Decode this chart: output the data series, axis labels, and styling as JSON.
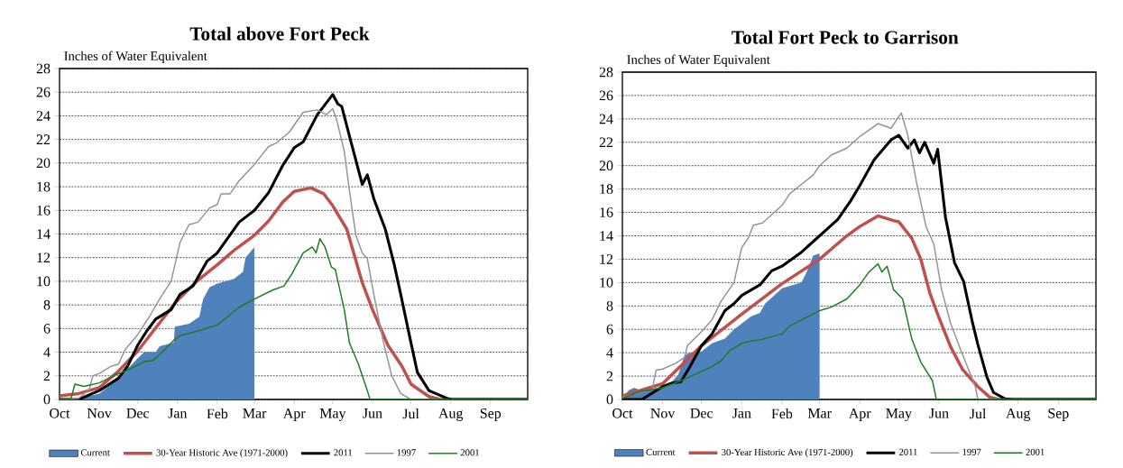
{
  "chart_data": [
    {
      "type": "line",
      "title": "Total above Fort Peck",
      "ylabel": "Inches of Water Equivalent",
      "xlim": [
        "2011-10-01",
        "2012-09-30"
      ],
      "ylim": [
        0,
        28
      ],
      "xticks": [
        {
          "value": "2011-10-01",
          "label": "Oct"
        },
        {
          "value": "2011-11-01",
          "label": "Nov"
        },
        {
          "value": "2011-12-01",
          "label": "Dec"
        },
        {
          "value": "2012-01-01",
          "label": "Jan"
        },
        {
          "value": "2012-02-01",
          "label": "Feb"
        },
        {
          "value": "2012-03-01",
          "label": "Mar"
        },
        {
          "value": "2012-04-01",
          "label": "Apr"
        },
        {
          "value": "2012-05-01",
          "label": "May"
        },
        {
          "value": "2012-06-01",
          "label": "Jun"
        },
        {
          "value": "2012-07-01",
          "label": "Jul"
        },
        {
          "value": "2012-08-01",
          "label": "Aug"
        },
        {
          "value": "2012-09-01",
          "label": "Sep"
        }
      ],
      "yticks": [
        0,
        2,
        4,
        6,
        8,
        10,
        12,
        14,
        16,
        18,
        20,
        22,
        24,
        26,
        28
      ],
      "grid": "y",
      "legend": "bottom",
      "series": [
        {
          "name": "Current",
          "type": "area",
          "color": "#4f81bd",
          "x": [
            "2011-10-01",
            "2011-10-11",
            "2011-10-21",
            "2011-11-01",
            "2011-11-16",
            "2011-12-01",
            "2011-12-06",
            "2011-12-15",
            "2011-12-18",
            "2011-12-29",
            "2011-12-30",
            "2012-01-01",
            "2012-01-10",
            "2012-01-18",
            "2012-01-21",
            "2012-01-26",
            "2012-02-01",
            "2012-02-14",
            "2012-02-21",
            "2012-02-23",
            "2012-03-01"
          ],
          "values": [
            0,
            0,
            0.2,
            0.5,
            1.8,
            3.5,
            4.0,
            4.0,
            4.5,
            4.8,
            6.2,
            6.2,
            6.4,
            7.0,
            8.5,
            9.5,
            9.8,
            10.2,
            10.8,
            12.0,
            12.9
          ]
        },
        {
          "name": "30-Year Historic Ave (1971-2000)",
          "color": "#c0504d",
          "x": [
            "2011-10-01",
            "2011-10-16",
            "2011-11-01",
            "2011-11-16",
            "2011-12-01",
            "2011-12-16",
            "2012-01-01",
            "2012-01-16",
            "2012-02-01",
            "2012-02-15",
            "2012-03-01",
            "2012-03-12",
            "2012-03-23",
            "2012-04-01",
            "2012-04-14",
            "2012-04-24",
            "2012-05-01",
            "2012-05-12",
            "2012-05-24",
            "2012-06-01",
            "2012-06-13",
            "2012-06-24",
            "2012-07-01",
            "2012-07-15",
            "2012-07-24",
            "2012-09-30"
          ],
          "values": [
            0.3,
            0.5,
            1.0,
            2.4,
            4.1,
            6.2,
            8.4,
            10.0,
            11.4,
            12.7,
            13.9,
            15.1,
            16.7,
            17.6,
            17.9,
            17.4,
            16.4,
            14.4,
            9.9,
            7.6,
            4.6,
            2.8,
            1.3,
            0.25,
            0,
            0
          ]
        },
        {
          "name": "2011",
          "color": "#000000",
          "x": [
            "2011-10-01",
            "2011-10-16",
            "2011-11-01",
            "2011-11-16",
            "2011-11-23",
            "2011-12-01",
            "2011-12-08",
            "2011-12-15",
            "2011-12-27",
            "2012-01-03",
            "2012-01-13",
            "2012-01-24",
            "2012-02-01",
            "2012-02-18",
            "2012-03-01",
            "2012-03-12",
            "2012-03-23",
            "2012-04-01",
            "2012-04-08",
            "2012-04-19",
            "2012-05-01",
            "2012-05-05",
            "2012-05-08",
            "2012-05-14",
            "2012-05-24",
            "2012-05-28",
            "2012-06-02",
            "2012-06-11",
            "2012-06-18",
            "2012-06-23",
            "2012-07-01",
            "2012-07-06",
            "2012-07-15",
            "2012-07-29",
            "2012-08-02",
            "2012-09-30"
          ],
          "values": [
            0,
            0,
            0.75,
            1.8,
            2.8,
            4.6,
            5.8,
            6.8,
            7.6,
            8.9,
            9.6,
            11.7,
            12.4,
            15.0,
            16.0,
            17.5,
            19.8,
            21.3,
            21.8,
            24.1,
            25.8,
            25.0,
            24.8,
            22.3,
            18.2,
            19.0,
            17.0,
            14.4,
            11.4,
            8.9,
            4.8,
            2.3,
            0.75,
            0.1,
            0,
            0
          ]
        },
        {
          "name": "1997",
          "color": "#939393",
          "x": [
            "2011-10-01",
            "2011-10-16",
            "2011-10-24",
            "2011-10-27",
            "2011-11-01",
            "2011-11-10",
            "2011-11-16",
            "2011-11-21",
            "2011-12-01",
            "2011-12-10",
            "2011-12-18",
            "2011-12-27",
            "2012-01-03",
            "2012-01-10",
            "2012-01-17",
            "2012-01-26",
            "2012-02-01",
            "2012-02-04",
            "2012-02-11",
            "2012-02-18",
            "2012-03-01",
            "2012-03-12",
            "2012-03-18",
            "2012-03-28",
            "2012-04-08",
            "2012-04-19",
            "2012-04-26",
            "2012-05-01",
            "2012-05-04",
            "2012-05-10",
            "2012-05-14",
            "2012-05-19",
            "2012-05-24",
            "2012-05-28",
            "2012-06-02",
            "2012-06-09",
            "2012-06-16",
            "2012-06-23",
            "2012-07-01",
            "2012-09-30"
          ],
          "values": [
            0,
            0.1,
            0.8,
            2.0,
            2.2,
            2.8,
            3.0,
            4.2,
            5.5,
            7.0,
            8.5,
            10.0,
            13.3,
            14.8,
            15.0,
            16.2,
            16.5,
            17.4,
            17.4,
            18.5,
            19.9,
            21.4,
            21.7,
            22.6,
            24.3,
            24.5,
            24.1,
            24.6,
            23.7,
            21.0,
            17.7,
            13.9,
            12.4,
            11.9,
            8.9,
            5.1,
            2.0,
            0.5,
            0,
            0
          ]
        },
        {
          "name": "2001",
          "color": "#1e7b1e",
          "x": [
            "2011-10-01",
            "2011-10-10",
            "2011-10-13",
            "2011-10-20",
            "2011-10-24",
            "2011-11-01",
            "2011-11-12",
            "2011-11-21",
            "2011-12-01",
            "2011-12-06",
            "2011-12-13",
            "2011-12-20",
            "2011-12-29",
            "2012-01-03",
            "2012-01-17",
            "2012-02-01",
            "2012-02-09",
            "2012-02-18",
            "2012-03-01",
            "2012-03-15",
            "2012-03-24",
            "2012-03-30",
            "2012-04-08",
            "2012-04-15",
            "2012-04-18",
            "2012-04-21",
            "2012-04-25",
            "2012-04-30",
            "2012-05-03",
            "2012-05-10",
            "2012-05-14",
            "2012-05-21",
            "2012-05-28",
            "2012-05-30",
            "2012-09-30"
          ],
          "values": [
            0.1,
            0.1,
            1.3,
            1.1,
            1.2,
            1.4,
            2.0,
            2.4,
            2.9,
            3.2,
            3.3,
            4.0,
            5.0,
            5.4,
            5.8,
            6.3,
            7.0,
            7.8,
            8.5,
            9.25,
            9.6,
            10.6,
            12.4,
            12.9,
            12.4,
            13.6,
            12.9,
            11.2,
            11.0,
            7.6,
            4.8,
            3.0,
            0.75,
            0,
            0
          ]
        }
      ]
    },
    {
      "type": "line",
      "title": "Total Fort Peck to Garrison",
      "ylabel": "Inches of Water Equivalent",
      "xlim": [
        "2011-10-01",
        "2012-09-30"
      ],
      "ylim": [
        0,
        28
      ],
      "xticks": [
        {
          "value": "2011-10-01",
          "label": "Oct"
        },
        {
          "value": "2011-11-01",
          "label": "Nov"
        },
        {
          "value": "2011-12-01",
          "label": "Dec"
        },
        {
          "value": "2012-01-01",
          "label": "Jan"
        },
        {
          "value": "2012-02-01",
          "label": "Feb"
        },
        {
          "value": "2012-03-01",
          "label": "Mar"
        },
        {
          "value": "2012-04-01",
          "label": "Apr"
        },
        {
          "value": "2012-05-01",
          "label": "May"
        },
        {
          "value": "2012-06-01",
          "label": "Jun"
        },
        {
          "value": "2012-07-01",
          "label": "Jul"
        },
        {
          "value": "2012-08-01",
          "label": "Aug"
        },
        {
          "value": "2012-09-01",
          "label": "Sep"
        }
      ],
      "yticks": [
        0,
        2,
        4,
        6,
        8,
        10,
        12,
        14,
        16,
        18,
        20,
        22,
        24,
        26,
        28
      ],
      "grid": "y",
      "legend": "bottom",
      "series": [
        {
          "name": "Current",
          "type": "area",
          "color": "#4f81bd",
          "x": [
            "2011-10-01",
            "2011-10-06",
            "2011-10-10",
            "2011-10-15",
            "2011-10-24",
            "2011-11-01",
            "2011-11-08",
            "2011-11-13",
            "2011-11-18",
            "2011-11-22",
            "2011-12-01",
            "2011-12-09",
            "2011-12-19",
            "2011-12-26",
            "2012-01-01",
            "2012-01-08",
            "2012-01-15",
            "2012-01-19",
            "2012-02-01",
            "2012-02-16",
            "2012-02-20",
            "2012-02-25",
            "2012-03-01"
          ],
          "values": [
            0.2,
            0.8,
            1.0,
            0.8,
            0.9,
            1.1,
            1.5,
            2.1,
            3.8,
            4.0,
            4.1,
            4.8,
            5.2,
            6.0,
            6.5,
            7.1,
            7.4,
            8.2,
            9.5,
            10.0,
            10.9,
            12.3,
            12.5
          ]
        },
        {
          "name": "30-Year Historic Ave (1971-2000)",
          "color": "#c0504d",
          "x": [
            "2011-10-01",
            "2011-11-01",
            "2011-12-01",
            "2012-01-01",
            "2012-02-01",
            "2012-03-01",
            "2012-03-22",
            "2012-04-01",
            "2012-04-15",
            "2012-04-27",
            "2012-05-01",
            "2012-05-11",
            "2012-05-18",
            "2012-05-25",
            "2012-06-01",
            "2012-06-10",
            "2012-06-19",
            "2012-07-01",
            "2012-07-10",
            "2012-07-17",
            "2012-09-30"
          ],
          "values": [
            0.3,
            1.35,
            4.6,
            7.3,
            9.9,
            12.0,
            14.0,
            14.8,
            15.7,
            15.3,
            15.2,
            13.8,
            12.0,
            9.1,
            7.0,
            4.5,
            2.6,
            1.1,
            0.2,
            0,
            0
          ]
        },
        {
          "name": "2011",
          "color": "#000000",
          "x": [
            "2011-10-01",
            "2011-10-16",
            "2011-11-01",
            "2011-11-08",
            "2011-11-15",
            "2011-11-22",
            "2011-12-01",
            "2011-12-09",
            "2011-12-19",
            "2011-12-26",
            "2012-01-01",
            "2012-01-15",
            "2012-01-24",
            "2012-02-01",
            "2012-02-16",
            "2012-03-01",
            "2012-03-15",
            "2012-03-25",
            "2012-04-01",
            "2012-04-12",
            "2012-04-25",
            "2012-05-01",
            "2012-05-08",
            "2012-05-13",
            "2012-05-17",
            "2012-05-21",
            "2012-05-28",
            "2012-05-31",
            "2012-06-06",
            "2012-06-13",
            "2012-06-20",
            "2012-06-27",
            "2012-07-01",
            "2012-07-08",
            "2012-07-13",
            "2012-07-22",
            "2012-07-28",
            "2012-09-30"
          ],
          "values": [
            0,
            0,
            1.1,
            1.4,
            1.5,
            2.8,
            4.6,
            5.6,
            7.6,
            8.2,
            8.9,
            9.8,
            11.0,
            11.4,
            12.6,
            14.0,
            15.4,
            17.0,
            18.3,
            20.5,
            22.2,
            22.6,
            21.5,
            22.2,
            21.1,
            22.0,
            20.2,
            21.4,
            15.6,
            11.7,
            10.1,
            6.5,
            4.7,
            1.9,
            0.6,
            0.05,
            0,
            0
          ]
        },
        {
          "name": "1997",
          "color": "#939393",
          "x": [
            "2011-10-01",
            "2011-10-24",
            "2011-10-27",
            "2011-11-01",
            "2011-11-11",
            "2011-11-18",
            "2011-11-20",
            "2011-12-01",
            "2011-12-09",
            "2011-12-16",
            "2011-12-26",
            "2011-12-30",
            "2012-01-01",
            "2012-01-06",
            "2012-01-10",
            "2012-01-17",
            "2012-02-01",
            "2012-02-07",
            "2012-02-16",
            "2012-02-25",
            "2012-03-01",
            "2012-03-10",
            "2012-03-22",
            "2012-04-01",
            "2012-04-15",
            "2012-04-25",
            "2012-05-03",
            "2012-05-08",
            "2012-05-15",
            "2012-05-22",
            "2012-05-28",
            "2012-06-03",
            "2012-06-10",
            "2012-06-19",
            "2012-06-29",
            "2012-07-01",
            "2012-09-30"
          ],
          "values": [
            0.2,
            0.9,
            2.5,
            2.6,
            3.1,
            3.6,
            4.6,
            5.8,
            6.8,
            8.4,
            10.0,
            12.0,
            13.0,
            13.8,
            14.9,
            15.1,
            16.6,
            17.6,
            18.4,
            19.2,
            20.0,
            20.9,
            21.5,
            22.5,
            23.6,
            23.2,
            24.5,
            22.6,
            18.4,
            14.8,
            13.3,
            9.4,
            6.5,
            3.9,
            1.1,
            0,
            0
          ]
        },
        {
          "name": "2001",
          "color": "#1e7b1e",
          "x": [
            "2011-10-01",
            "2011-10-15",
            "2011-11-01",
            "2011-11-15",
            "2011-12-01",
            "2011-12-09",
            "2011-12-16",
            "2011-12-23",
            "2012-01-01",
            "2012-01-08",
            "2012-01-15",
            "2012-02-01",
            "2012-02-07",
            "2012-02-16",
            "2012-03-01",
            "2012-03-10",
            "2012-03-22",
            "2012-04-01",
            "2012-04-08",
            "2012-04-15",
            "2012-04-18",
            "2012-04-22",
            "2012-04-27",
            "2012-05-04",
            "2012-05-11",
            "2012-05-18",
            "2012-05-27",
            "2012-05-30",
            "2012-09-30"
          ],
          "values": [
            0.1,
            0.7,
            1.0,
            1.6,
            2.4,
            2.8,
            3.3,
            4.2,
            4.8,
            5.0,
            5.1,
            5.6,
            6.3,
            6.8,
            7.6,
            7.9,
            8.6,
            9.8,
            10.9,
            11.6,
            10.9,
            11.4,
            9.4,
            8.6,
            5.2,
            3.2,
            1.6,
            0,
            0
          ]
        }
      ]
    }
  ]
}
